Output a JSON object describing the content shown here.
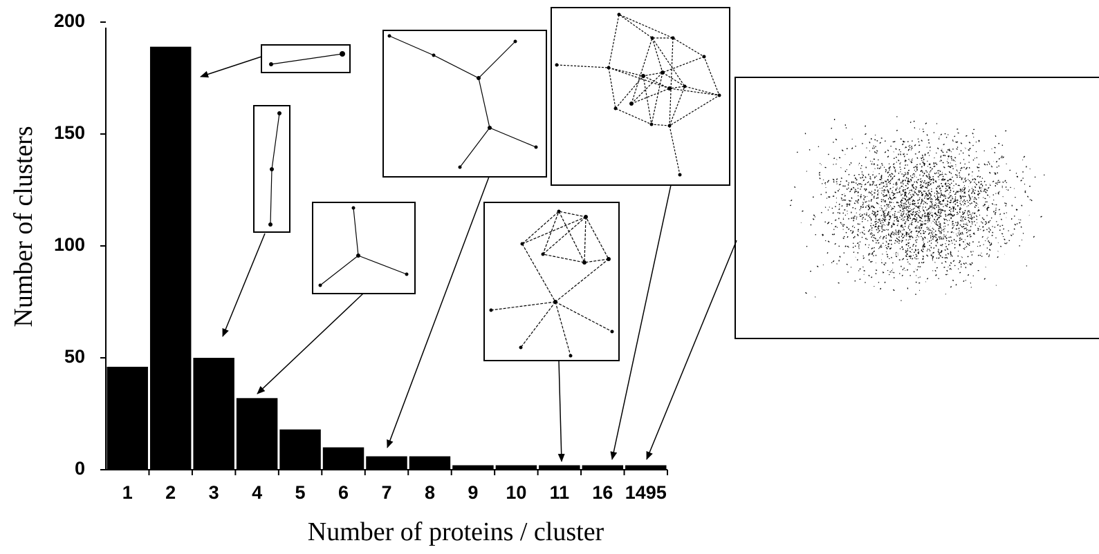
{
  "chart_data": {
    "type": "bar",
    "xlabel": "Number of proteins / cluster",
    "ylabel": "Number of clusters",
    "categories": [
      "1",
      "2",
      "3",
      "4",
      "5",
      "6",
      "7",
      "8",
      "9",
      "10",
      "11",
      "16",
      "1495"
    ],
    "values": [
      46,
      189,
      50,
      32,
      18,
      10,
      6,
      6,
      2,
      2,
      2,
      2,
      2
    ],
    "color": "#000000",
    "ylim": [
      0,
      200
    ],
    "yticks": [
      0,
      50,
      100,
      150,
      200
    ]
  }
}
